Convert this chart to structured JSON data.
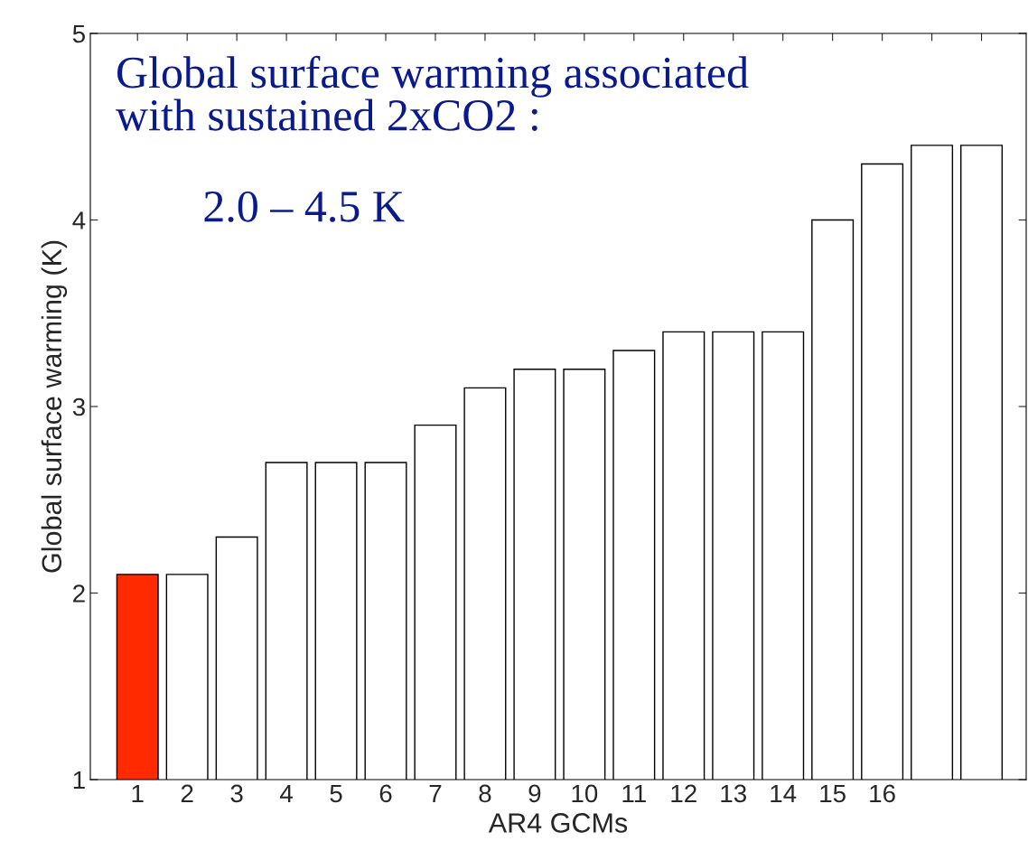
{
  "chart_data": {
    "type": "bar",
    "title": "Global surface warming associated\nwith sustained 2xCO2 :",
    "subtitle": "2.0 – 4.5 K",
    "xlabel": "AR4 GCMs",
    "ylabel": "Global surface warming (K)",
    "categories": [
      "1",
      "2",
      "3",
      "4",
      "5",
      "6",
      "7",
      "8",
      "9",
      "10",
      "11",
      "12",
      "13",
      "14",
      "15",
      "16",
      null,
      null
    ],
    "values": [
      2.1,
      2.1,
      2.3,
      2.7,
      2.7,
      2.7,
      2.9,
      3.1,
      3.2,
      3.2,
      3.3,
      3.4,
      3.4,
      3.4,
      4.0,
      4.3,
      4.4,
      4.4
    ],
    "colors": [
      "#ff2a00",
      "#ffffff",
      "#ffffff",
      "#ffffff",
      "#ffffff",
      "#ffffff",
      "#ffffff",
      "#ffffff",
      "#ffffff",
      "#ffffff",
      "#ffffff",
      "#ffffff",
      "#ffffff",
      "#ffffff",
      "#ffffff",
      "#ffffff",
      "#ffffff",
      "#ffffff"
    ],
    "ylim": [
      1,
      5
    ],
    "yticks": [
      1,
      2,
      3,
      4,
      5
    ],
    "grid": false,
    "legend": false
  }
}
